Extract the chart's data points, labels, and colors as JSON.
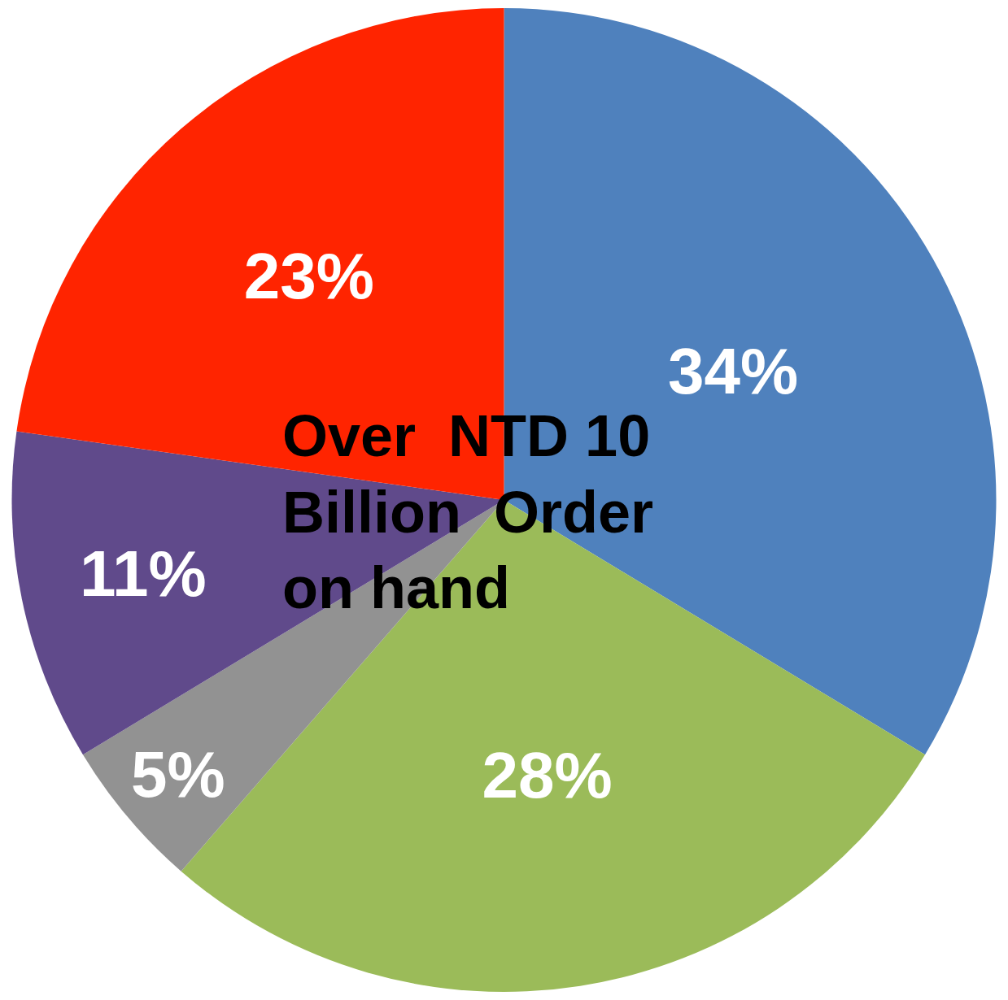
{
  "chart_data": {
    "type": "pie",
    "categories": [
      null,
      null,
      null,
      null,
      null
    ],
    "values": [
      34,
      28,
      5,
      11,
      23
    ],
    "value_labels": [
      "34%",
      "28%",
      "5%",
      "11%",
      "23%"
    ],
    "colors": [
      "#4f81bd",
      "#9bbb59",
      "#929292",
      "#604a8b",
      "#ff2400"
    ],
    "annotations": [
      "Over  NTD 10\nBillion  Order\non hand"
    ]
  }
}
